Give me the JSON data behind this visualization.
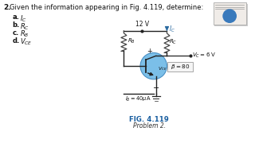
{
  "fig_label": "FIG. 4.119",
  "fig_sublabel": "Problem 2.",
  "vcc": "12 V",
  "vc_label": "$V_C = 6$ V",
  "beta_label": "$\\beta = 80$",
  "vce_label": "$V_{CE}$",
  "ic_label": "$I_C$",
  "rc_label": "$R_C$",
  "rb_label": "$R_B$",
  "ib_label": "$I_B = 40\\mu$A",
  "bg_color": "#ffffff",
  "transistor_fill": "#7bbfe8",
  "transistor_edge": "#4a90c4",
  "arrow_color": "#2a6aa0",
  "fig_label_color": "#1a5fa0",
  "wire_color": "#222222",
  "text_color": "#111111",
  "res_color": "#444444"
}
